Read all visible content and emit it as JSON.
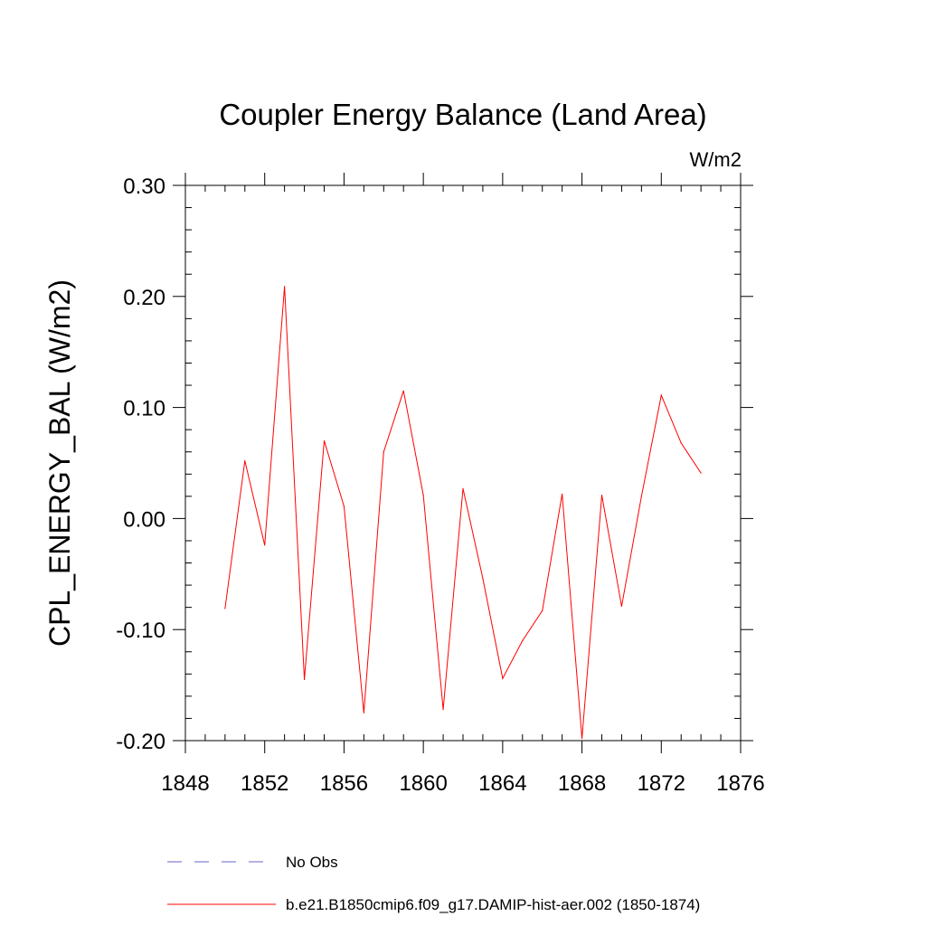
{
  "chart_data": {
    "type": "line",
    "title": "Coupler Energy Balance (Land Area)",
    "units_label": "W/m2",
    "ylabel": "CPL_ENERGY_BAL  (W/m2)",
    "xlabel": "",
    "xlim": [
      1848,
      1876
    ],
    "ylim": [
      -0.2,
      0.3
    ],
    "x_ticks": [
      "1848",
      "1852",
      "1856",
      "1860",
      "1864",
      "1868",
      "1872",
      "1876"
    ],
    "y_ticks": [
      "-0.20",
      "-0.10",
      "0.00",
      "0.10",
      "0.20",
      "0.30"
    ],
    "grid": false,
    "x": [
      1850,
      1851,
      1852,
      1853,
      1854,
      1855,
      1856,
      1857,
      1858,
      1859,
      1860,
      1861,
      1862,
      1863,
      1864,
      1865,
      1866,
      1867,
      1868,
      1869,
      1870,
      1871,
      1872,
      1873,
      1874
    ],
    "series": [
      {
        "name": "b.e21.B1850cmip6.f09_g17.DAMIP-hist-aer.002 (1850-1874)",
        "color": "#ff0000",
        "style": "solid",
        "values": [
          -0.081,
          0.052,
          -0.024,
          0.209,
          -0.145,
          0.07,
          0.011,
          -0.175,
          0.06,
          0.115,
          0.021,
          -0.172,
          0.027,
          -0.054,
          -0.144,
          -0.11,
          -0.083,
          0.022,
          -0.198,
          0.021,
          -0.079,
          0.02,
          0.111,
          0.068,
          0.041
        ]
      }
    ],
    "legend": {
      "placement": "bottom",
      "entries": [
        {
          "label": "No Obs",
          "color": "#6666cc",
          "style": "dashed"
        },
        {
          "label": "b.e21.B1850cmip6.f09_g17.DAMIP-hist-aer.002 (1850-1874)",
          "color": "#ff0000",
          "style": "solid"
        }
      ]
    }
  }
}
